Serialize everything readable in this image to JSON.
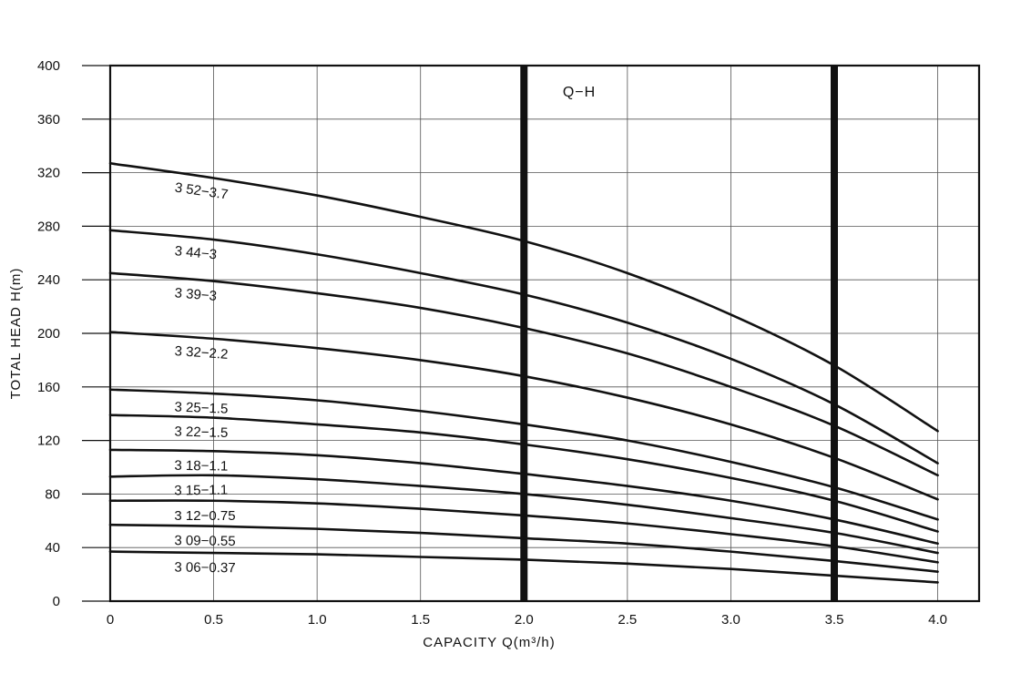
{
  "chart_data": {
    "type": "line",
    "title": "Q−H",
    "xlabel": "CAPACITY  Q(m³/h)",
    "ylabel": "TOTAL HEAD  H(m)",
    "xlim": [
      0,
      4.2
    ],
    "ylim": [
      0,
      400
    ],
    "x_ticks": [
      0,
      0.5,
      1.0,
      1.5,
      2.0,
      2.5,
      3.0,
      3.5,
      4.0
    ],
    "x_tick_labels": [
      "0",
      "0.5",
      "1.0",
      "1.5",
      "2.0",
      "2.5",
      "3.0",
      "3.5",
      "4.0"
    ],
    "y_ticks": [
      0,
      40,
      80,
      120,
      160,
      200,
      240,
      280,
      320,
      360,
      400
    ],
    "y_tick_labels": [
      "0",
      "40",
      "80",
      "120",
      "160",
      "200",
      "240",
      "280",
      "320",
      "360",
      "400"
    ],
    "grid": true,
    "highlight_lines_x": [
      2.0,
      3.5
    ],
    "x": [
      0,
      0.5,
      1.0,
      1.5,
      2.0,
      2.5,
      3.0,
      3.5,
      4.0
    ],
    "series": [
      {
        "name": "3 52−3.7",
        "values": [
          327,
          316,
          303,
          287,
          269,
          245,
          214,
          176,
          127
        ]
      },
      {
        "name": "3 44−3",
        "values": [
          277,
          270,
          259,
          245,
          229,
          208,
          181,
          147,
          103
        ]
      },
      {
        "name": "3 39−3",
        "values": [
          245,
          239,
          230,
          219,
          204,
          185,
          160,
          131,
          94
        ]
      },
      {
        "name": "3 32−2.2",
        "values": [
          201,
          196,
          189,
          180,
          168,
          152,
          132,
          107,
          76
        ]
      },
      {
        "name": "3 25−1.5",
        "values": [
          158,
          155,
          150,
          142,
          132,
          120,
          104,
          85,
          61
        ]
      },
      {
        "name": "3 22−1.5",
        "values": [
          139,
          137,
          132,
          126,
          117,
          106,
          92,
          75,
          52
        ]
      },
      {
        "name": "3 18−1.1",
        "values": [
          113,
          112,
          109,
          103,
          95,
          86,
          75,
          61,
          43
        ]
      },
      {
        "name": "3 15−1.1",
        "values": [
          93,
          94,
          91,
          86,
          80,
          72,
          62,
          51,
          36
        ]
      },
      {
        "name": "3 12−0.75",
        "values": [
          75,
          75,
          73,
          69,
          64,
          58,
          50,
          41,
          29
        ]
      },
      {
        "name": "3 09−0.55",
        "values": [
          57,
          56,
          54,
          51,
          47,
          43,
          37,
          30,
          22
        ]
      },
      {
        "name": "3 06−0.37",
        "values": [
          37,
          36,
          35,
          33,
          31,
          28,
          24,
          19,
          14
        ]
      }
    ]
  }
}
